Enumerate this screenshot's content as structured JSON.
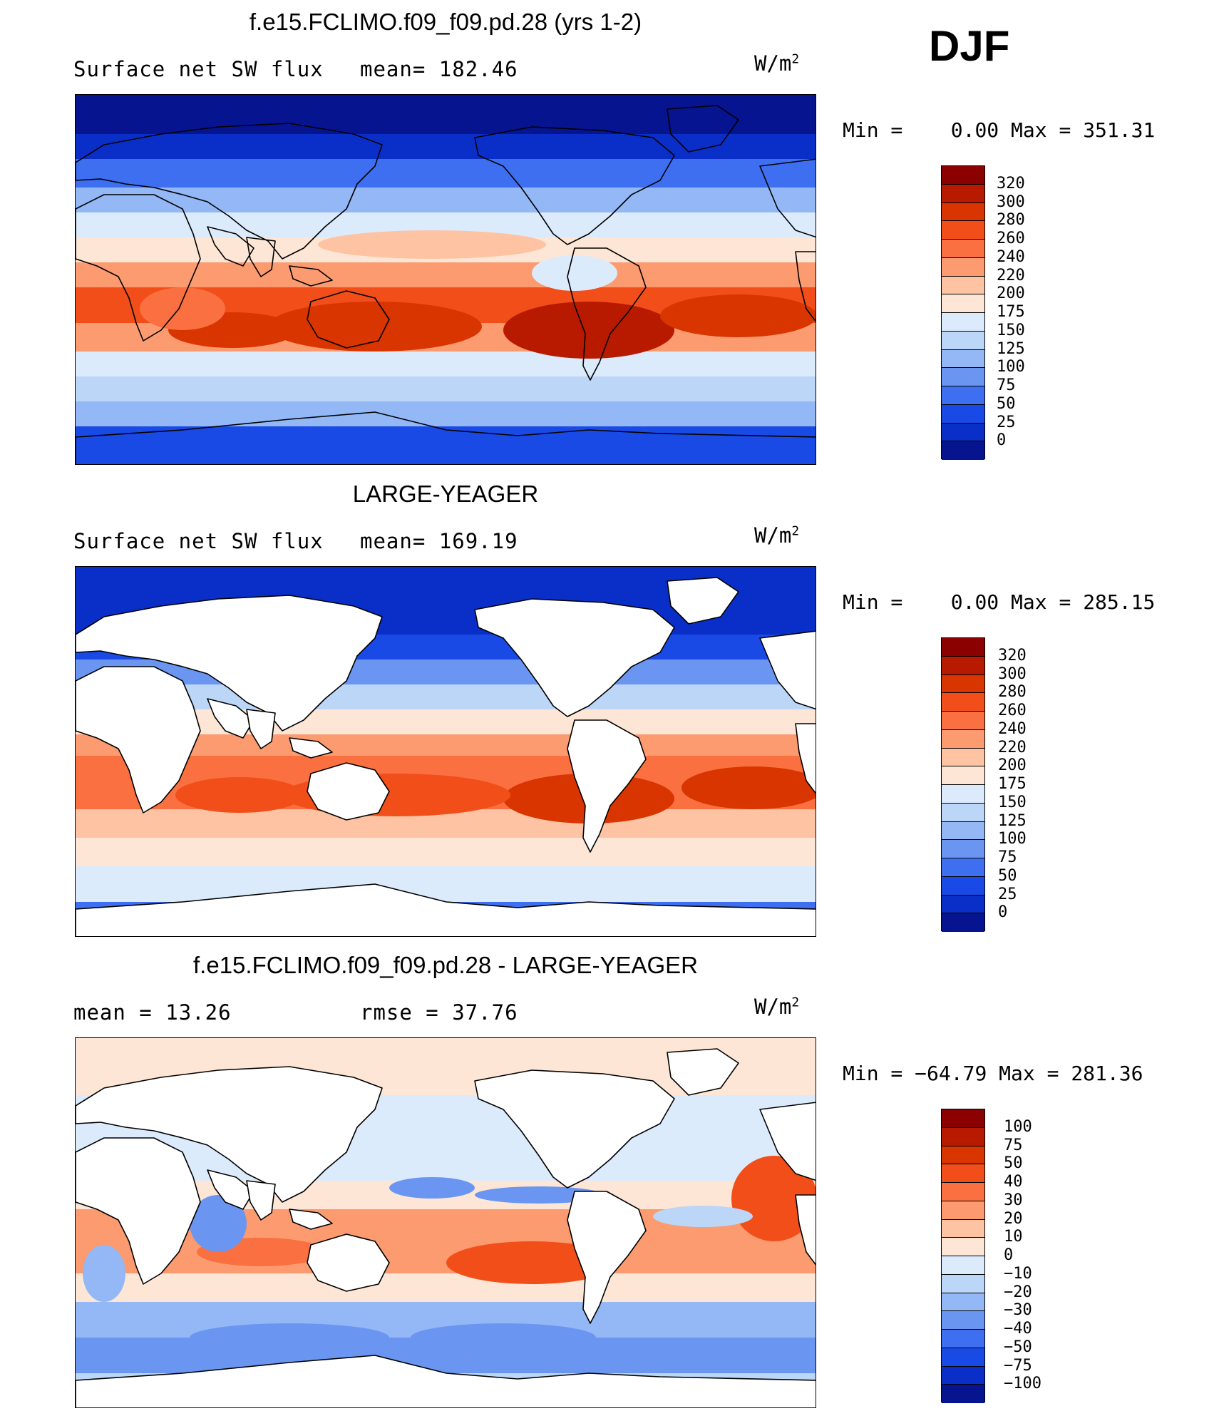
{
  "season": "DJF",
  "panels": [
    {
      "id": "model",
      "title": "f.e15.FCLIMO.f09_f09.pd.28 (yrs 1-2)",
      "variable": "Surface net SW flux",
      "stat_left": "mean=",
      "stat_left_value": "182.46",
      "stat_right": "",
      "stat_right_value": "",
      "units": "W/m",
      "units_sup": "2",
      "min_label": "Min =",
      "min_value": "0.00",
      "max_label": "Max =",
      "max_value": "351.31",
      "levels": [
        "320",
        "300",
        "280",
        "260",
        "240",
        "220",
        "200",
        "175",
        "150",
        "125",
        "100",
        "75",
        "50",
        "25",
        "0"
      ],
      "colors": [
        "#8b0000",
        "#b81a00",
        "#d93500",
        "#f24e1a",
        "#fa7040",
        "#fc9a70",
        "#fdc3a2",
        "#fde6d5",
        "#dcebfb",
        "#bcd6f8",
        "#93b8f5",
        "#6a96f2",
        "#3e6ff0",
        "#1a4ae6",
        "#0a2fc8",
        "#06148f"
      ],
      "ocean_land": "filled"
    },
    {
      "id": "obs",
      "title": "LARGE-YEAGER",
      "variable": "Surface net SW flux",
      "stat_left": "mean=",
      "stat_left_value": "169.19",
      "stat_right": "",
      "stat_right_value": "",
      "units": "W/m",
      "units_sup": "2",
      "min_label": "Min =",
      "min_value": "0.00",
      "max_label": "Max =",
      "max_value": "285.15",
      "levels": [
        "320",
        "300",
        "280",
        "260",
        "240",
        "220",
        "200",
        "175",
        "150",
        "125",
        "100",
        "75",
        "50",
        "25",
        "0"
      ],
      "colors": [
        "#8b0000",
        "#b81a00",
        "#d93500",
        "#f24e1a",
        "#fa7040",
        "#fc9a70",
        "#fdc3a2",
        "#fde6d5",
        "#dcebfb",
        "#bcd6f8",
        "#93b8f5",
        "#6a96f2",
        "#3e6ff0",
        "#1a4ae6",
        "#0a2fc8",
        "#06148f"
      ],
      "ocean_land": "ocean-only"
    },
    {
      "id": "diff",
      "title": "f.e15.FCLIMO.f09_f09.pd.28 - LARGE-YEAGER",
      "variable": "",
      "stat_left": "mean =",
      "stat_left_value": "13.26",
      "stat_right": "rmse =",
      "stat_right_value": "37.76",
      "units": "W/m",
      "units_sup": "2",
      "min_label": "Min =",
      "min_value": "−64.79",
      "max_label": "Max =",
      "max_value": "281.36",
      "levels": [
        "100",
        "75",
        "50",
        "40",
        "30",
        "20",
        "10",
        "0",
        "−10",
        "−20",
        "−30",
        "−40",
        "−50",
        "−75",
        "−100"
      ],
      "colors": [
        "#8b0000",
        "#b81a00",
        "#d93500",
        "#f24e1a",
        "#fa7040",
        "#fc9a70",
        "#fdc3a2",
        "#fde6d5",
        "#dcebfb",
        "#bcd6f8",
        "#93b8f5",
        "#6a96f2",
        "#3e6ff0",
        "#1a4ae6",
        "#0a2fc8",
        "#06148f"
      ],
      "ocean_land": "ocean-only"
    }
  ]
}
